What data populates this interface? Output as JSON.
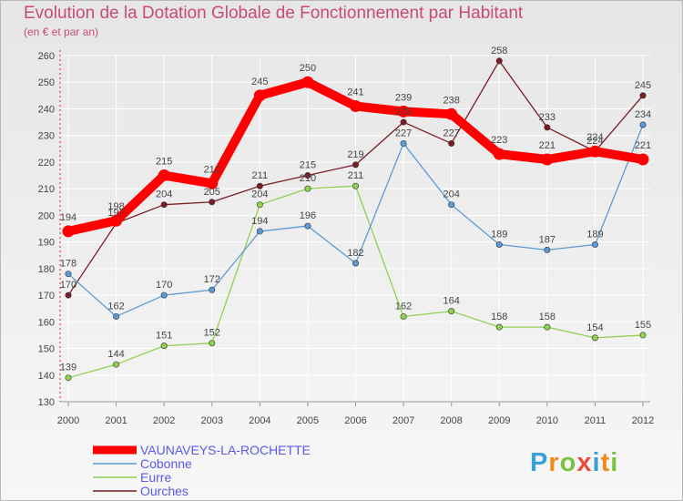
{
  "title": "Evolution de la Dotation Globale de Fonctionnement par Habitant",
  "subtitle": "(en € et par an)",
  "logo": "Proxiti",
  "colors": {
    "background_top": "#e6e6e6",
    "background_bottom": "#f7f7f7",
    "title": "#c94a78",
    "axis_text": "#444444",
    "legend_text": "#5a5ae6",
    "grid": "#ffffff"
  },
  "chart_data": {
    "type": "line",
    "title": "Evolution de la Dotation Globale de Fonctionnement par Habitant",
    "subtitle": "(en € et par an)",
    "xlabel": "",
    "ylabel": "",
    "x": [
      "2000",
      "2001",
      "2002",
      "2003",
      "2004",
      "2005",
      "2006",
      "2007",
      "2008",
      "2009",
      "2010",
      "2011",
      "2012"
    ],
    "ylim": [
      130,
      260
    ],
    "yticks": [
      "130",
      "140",
      "150",
      "160",
      "170",
      "180",
      "190",
      "200",
      "210",
      "220",
      "230",
      "240",
      "250",
      "260"
    ],
    "grid": true,
    "legend_position": "bottom-left",
    "series": [
      {
        "name": "VAUNAVEYS-LA-ROCHETTE",
        "color": "#ff0000",
        "values": [
          194,
          198,
          215,
          212,
          245,
          250,
          241,
          239,
          238,
          223,
          221,
          224,
          221
        ]
      },
      {
        "name": "Cobonne",
        "color": "#5b9bd5",
        "values": [
          178,
          162,
          170,
          172,
          194,
          196,
          182,
          227,
          204,
          189,
          187,
          189,
          234
        ]
      },
      {
        "name": "Eurre",
        "color": "#92d050",
        "values": [
          139,
          144,
          151,
          152,
          204,
          210,
          211,
          162,
          164,
          158,
          158,
          154,
          155
        ]
      },
      {
        "name": "Ourches",
        "color": "#7b1c24",
        "values": [
          170,
          197,
          204,
          205,
          211,
          215,
          219,
          235,
          227,
          258,
          233,
          224,
          245
        ]
      }
    ]
  }
}
